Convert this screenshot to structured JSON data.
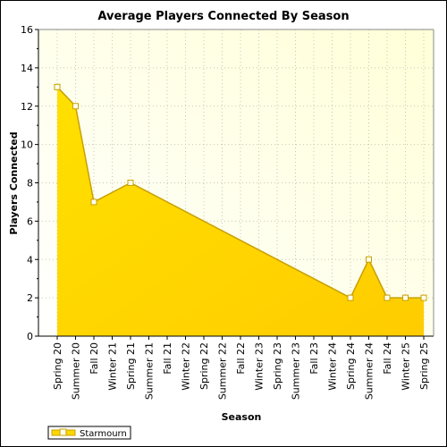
{
  "chart_data": {
    "type": "area",
    "title": "Average Players Connected By Season",
    "xlabel": "Season",
    "ylabel": "Players Connected",
    "categories": [
      "Spring 20",
      "Summer 20",
      "Fall 20",
      "Winter 21",
      "Spring 21",
      "Summer 21",
      "Fall 21",
      "Winter 22",
      "Spring 22",
      "Summer 22",
      "Fall 22",
      "Winter 23",
      "Spring 23",
      "Summer 23",
      "Fall 23",
      "Winter 24",
      "Spring 24",
      "Summer 24",
      "Fall 24",
      "Winter 25",
      "Spring 25"
    ],
    "ylim": [
      0,
      16
    ],
    "yticks": [
      0,
      2,
      4,
      6,
      8,
      10,
      12,
      14,
      16
    ],
    "grid": true,
    "legend_position": "bottom-left",
    "series": [
      {
        "name": "Starmourn",
        "values": [
          13,
          12,
          7,
          null,
          8,
          null,
          null,
          null,
          null,
          null,
          null,
          null,
          null,
          null,
          null,
          null,
          2,
          4,
          2,
          2,
          2
        ],
        "fill_color": "#ffd700",
        "line_color": "#c8a000",
        "marker_fill": "#ffffee"
      }
    ]
  }
}
